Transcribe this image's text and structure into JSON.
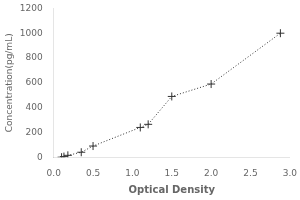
{
  "chart_data": {
    "type": "scatter",
    "xlabel": "Optical Density",
    "ylabel": "Concentration(pg/mL)",
    "x": [
      0.1,
      0.13,
      0.18,
      0.35,
      0.5,
      1.1,
      1.2,
      1.5,
      2.0,
      2.88
    ],
    "values": [
      0,
      5,
      15,
      40,
      90,
      240,
      265,
      490,
      590,
      1000
    ],
    "xlim": [
      0,
      3.0
    ],
    "ylim": [
      0,
      1200
    ],
    "xticks": [
      {
        "value": 0,
        "label": "0.0"
      },
      {
        "value": 0.5,
        "label": "0.5"
      },
      {
        "value": 1,
        "label": "1.0"
      },
      {
        "value": 1.5,
        "label": "1.5"
      },
      {
        "value": 2,
        "label": "2.0"
      },
      {
        "value": 2.5,
        "label": "2.5"
      },
      {
        "value": 3,
        "label": "3.0"
      }
    ],
    "yticks": [
      0,
      200,
      400,
      600,
      800,
      1000,
      1200
    ],
    "color": "#333333",
    "marker": "plus",
    "line_style": "dotted",
    "grid": false
  }
}
